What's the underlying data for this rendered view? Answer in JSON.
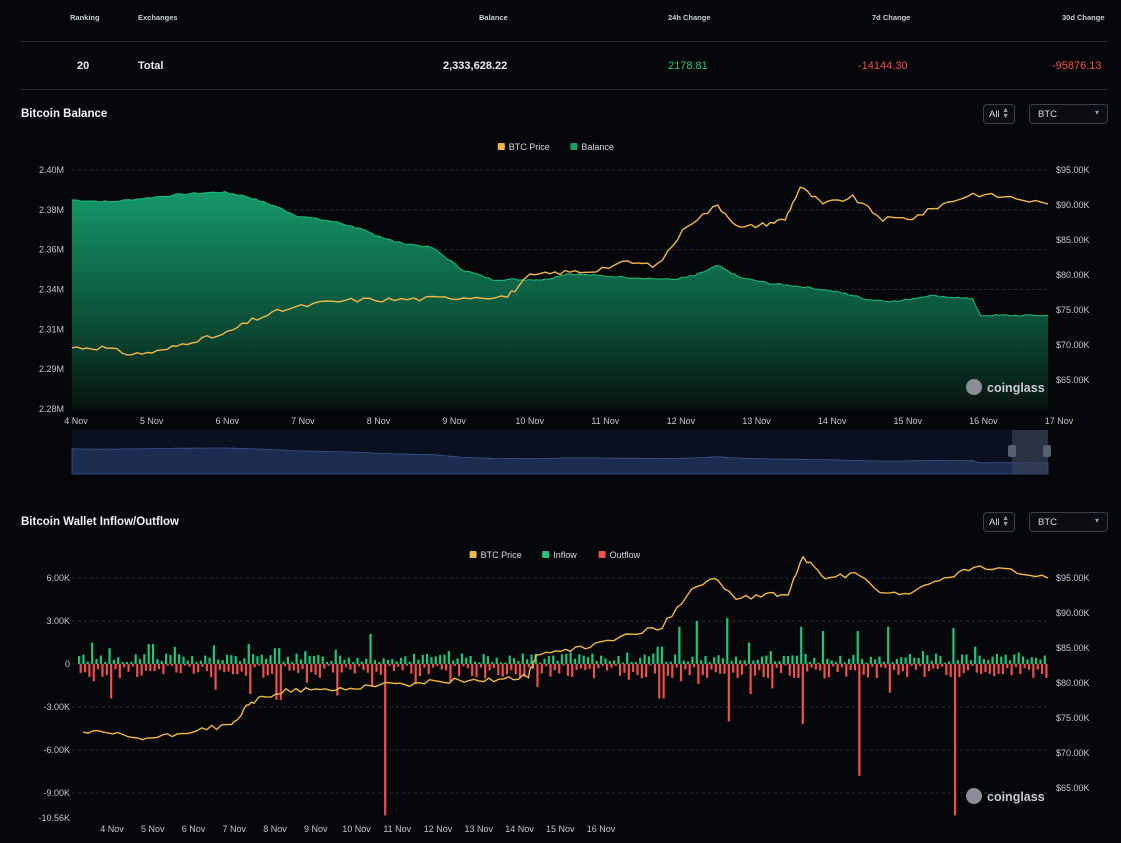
{
  "table": {
    "headers": {
      "ranking": "Ranking",
      "exchanges": "Exchanges",
      "balance": "Balance",
      "change24h": "24h Change",
      "change7d": "7d Change",
      "change30d": "30d Change"
    },
    "row": {
      "ranking": "20",
      "exchange": "Total",
      "balance": "2,333,628.22",
      "change24h": "2178.81",
      "change7d": "-14144.30",
      "change30d": "-95876.13"
    },
    "colors": {
      "positive": "#21c87a",
      "negative": "#f0504d"
    }
  },
  "balance_section": {
    "title": "Bitcoin Balance",
    "filter_value": "All",
    "coin_value": "BTC",
    "watermark": "coinglass"
  },
  "flow_section": {
    "title": "Bitcoin Wallet Inflow/Outflow",
    "filter_value": "All",
    "coin_value": "BTC",
    "watermark": "coinglass"
  },
  "chart_data": [
    {
      "type": "area",
      "legend": [
        "BTC Price",
        "Balance"
      ],
      "legend_position": "top-center",
      "colors": {
        "price": "#f0b84a",
        "balance": "#17a06a"
      },
      "x_ticks": [
        "4 Nov",
        "5 Nov",
        "6 Nov",
        "7 Nov",
        "8 Nov",
        "9 Nov",
        "10 Nov",
        "11 Nov",
        "12 Nov",
        "13 Nov",
        "14 Nov",
        "15 Nov",
        "16 Nov",
        "17 Nov"
      ],
      "y_left_ticks": [
        "2.40M",
        "2.38M",
        "2.36M",
        "2.34M",
        "2.31M",
        "2.29M",
        "2.28M"
      ],
      "y_right_ticks": [
        "$95.00K",
        "$90.00K",
        "$85.00K",
        "$80.00K",
        "$75.00K",
        "$70.00K",
        "$65.00K"
      ],
      "y_left_range": [
        2280000,
        2400000
      ],
      "y_right_range": [
        60000,
        95000
      ],
      "grid": true,
      "balance": [
        [
          4.0,
          2385000
        ],
        [
          4.5,
          2384000
        ],
        [
          5.0,
          2386000
        ],
        [
          5.5,
          2388000
        ],
        [
          6.0,
          2389000
        ],
        [
          6.3,
          2387000
        ],
        [
          6.7,
          2382000
        ],
        [
          7.0,
          2377000
        ],
        [
          7.5,
          2374000
        ],
        [
          7.8,
          2371000
        ],
        [
          8.0,
          2368000
        ],
        [
          8.3,
          2364000
        ],
        [
          8.8,
          2361000
        ],
        [
          9.2,
          2350000
        ],
        [
          9.6,
          2345000
        ],
        [
          10.0,
          2345000
        ],
        [
          10.3,
          2345000
        ],
        [
          10.6,
          2348000
        ],
        [
          11.0,
          2347000
        ],
        [
          11.5,
          2346000
        ],
        [
          12.0,
          2345000
        ],
        [
          12.3,
          2347000
        ],
        [
          12.6,
          2352000
        ],
        [
          12.9,
          2346000
        ],
        [
          13.3,
          2343000
        ],
        [
          13.6,
          2342000
        ],
        [
          14.0,
          2340000
        ],
        [
          14.3,
          2338000
        ],
        [
          14.6,
          2335000
        ],
        [
          15.0,
          2334000
        ],
        [
          15.4,
          2337000
        ],
        [
          15.8,
          2336000
        ],
        [
          16.0,
          2335000
        ],
        [
          16.1,
          2327000
        ],
        [
          16.5,
          2327000
        ],
        [
          17.0,
          2327000
        ]
      ],
      "price": [
        [
          4.0,
          69000
        ],
        [
          4.4,
          69000
        ],
        [
          4.8,
          68000
        ],
        [
          5.2,
          68500
        ],
        [
          5.6,
          70000
        ],
        [
          6.0,
          70800
        ],
        [
          6.4,
          73000
        ],
        [
          6.8,
          74500
        ],
        [
          7.3,
          75500
        ],
        [
          7.8,
          76000
        ],
        [
          8.3,
          76000
        ],
        [
          8.8,
          76200
        ],
        [
          9.3,
          76400
        ],
        [
          9.8,
          76500
        ],
        [
          10.1,
          79500
        ],
        [
          10.5,
          80000
        ],
        [
          10.9,
          80200
        ],
        [
          11.4,
          81500
        ],
        [
          11.8,
          81000
        ],
        [
          12.2,
          87000
        ],
        [
          12.6,
          89800
        ],
        [
          12.9,
          86500
        ],
        [
          13.2,
          87000
        ],
        [
          13.5,
          87800
        ],
        [
          13.7,
          92500
        ],
        [
          14.0,
          90000
        ],
        [
          14.4,
          91000
        ],
        [
          14.8,
          87800
        ],
        [
          15.2,
          88000
        ],
        [
          15.6,
          90000
        ],
        [
          16.0,
          91500
        ],
        [
          16.5,
          91000
        ],
        [
          17.0,
          90000
        ]
      ]
    },
    {
      "type": "bar",
      "legend": [
        "BTC Price",
        "Inflow",
        "Outflow"
      ],
      "legend_position": "top-center",
      "colors": {
        "price": "#f0b84a",
        "inflow": "#20c57b",
        "outflow": "#f0504d"
      },
      "x_ticks": [
        "4 Nov",
        "5 Nov",
        "6 Nov",
        "7 Nov",
        "8 Nov",
        "9 Nov",
        "10 Nov",
        "11 Nov",
        "12 Nov",
        "13 Nov",
        "14 Nov",
        "15 Nov",
        "16 Nov"
      ],
      "y_left_ticks": [
        "6.00K",
        "3.00K",
        "0",
        "-3.00K",
        "-6.00K",
        "-9.00K",
        "-10.56K"
      ],
      "y_right_ticks": [
        "$95.00K",
        "$90.00K",
        "$85.00K",
        "$80.00K",
        "$75.00K",
        "$70.00K",
        "$65.00K"
      ],
      "y_left_range": [
        -10560,
        6000
      ],
      "y_right_range": [
        60000,
        95000
      ],
      "grid": true,
      "spikes": [
        {
          "x": 4.1,
          "inflow": 1500,
          "outflow": -1200
        },
        {
          "x": 4.35,
          "inflow": 1100,
          "outflow": -2400
        },
        {
          "x": 4.9,
          "inflow": 1400,
          "outflow": -500
        },
        {
          "x": 5.2,
          "inflow": 1200,
          "outflow": -600
        },
        {
          "x": 5.75,
          "inflow": 1300,
          "outflow": -1800
        },
        {
          "x": 6.2,
          "inflow": 1400,
          "outflow": -2100
        },
        {
          "x": 6.6,
          "inflow": 1100,
          "outflow": -2500
        },
        {
          "x": 7.0,
          "inflow": 900,
          "outflow": -1300
        },
        {
          "x": 7.4,
          "inflow": 1000,
          "outflow": -2200
        },
        {
          "x": 7.85,
          "inflow": 2100,
          "outflow": -1500
        },
        {
          "x": 8.05,
          "inflow": 400,
          "outflow": -10560
        },
        {
          "x": 8.45,
          "inflow": 700,
          "outflow": -1400
        },
        {
          "x": 8.9,
          "inflow": 900,
          "outflow": -1200
        },
        {
          "x": 9.4,
          "inflow": 700,
          "outflow": -1000
        },
        {
          "x": 10.1,
          "inflow": 700,
          "outflow": -1600
        },
        {
          "x": 10.55,
          "inflow": 800,
          "outflow": -900
        },
        {
          "x": 11.3,
          "inflow": 800,
          "outflow": -1100
        },
        {
          "x": 11.75,
          "inflow": 1200,
          "outflow": -2400
        },
        {
          "x": 12.0,
          "inflow": 2600,
          "outflow": -1200
        },
        {
          "x": 12.25,
          "inflow": 3000,
          "outflow": -1400
        },
        {
          "x": 12.65,
          "inflow": 3200,
          "outflow": -4000
        },
        {
          "x": 12.95,
          "inflow": 1500,
          "outflow": -2100
        },
        {
          "x": 13.25,
          "inflow": 900,
          "outflow": -1700
        },
        {
          "x": 13.65,
          "inflow": 2600,
          "outflow": -4200
        },
        {
          "x": 13.95,
          "inflow": 2300,
          "outflow": -1000
        },
        {
          "x": 14.4,
          "inflow": 2300,
          "outflow": -7800
        },
        {
          "x": 14.85,
          "inflow": 2600,
          "outflow": -2000
        },
        {
          "x": 15.3,
          "inflow": 900,
          "outflow": -900
        },
        {
          "x": 15.7,
          "inflow": 2500,
          "outflow": -10560
        },
        {
          "x": 16.0,
          "inflow": 1200,
          "outflow": -600
        },
        {
          "x": 16.6,
          "inflow": 800,
          "outflow": -700
        }
      ],
      "price": [
        [
          4.0,
          68000
        ],
        [
          4.4,
          67700
        ],
        [
          4.8,
          67000
        ],
        [
          5.2,
          67500
        ],
        [
          5.6,
          68500
        ],
        [
          6.0,
          68900
        ],
        [
          6.2,
          71500
        ],
        [
          6.4,
          73000
        ],
        [
          6.8,
          74000
        ],
        [
          7.2,
          74000
        ],
        [
          7.6,
          74200
        ],
        [
          8.0,
          74900
        ],
        [
          8.4,
          74800
        ],
        [
          8.8,
          75300
        ],
        [
          9.2,
          75400
        ],
        [
          9.6,
          75500
        ],
        [
          10.0,
          76000
        ],
        [
          10.1,
          79000
        ],
        [
          10.5,
          79500
        ],
        [
          10.9,
          80500
        ],
        [
          11.4,
          82000
        ],
        [
          11.8,
          83000
        ],
        [
          12.2,
          88500
        ],
        [
          12.5,
          90000
        ],
        [
          12.8,
          87000
        ],
        [
          13.2,
          87500
        ],
        [
          13.5,
          87800
        ],
        [
          13.7,
          93000
        ],
        [
          14.0,
          90000
        ],
        [
          14.4,
          90500
        ],
        [
          14.8,
          87800
        ],
        [
          15.2,
          88000
        ],
        [
          15.6,
          90000
        ],
        [
          16.0,
          91500
        ],
        [
          16.5,
          91000
        ],
        [
          17.0,
          90000
        ]
      ]
    }
  ]
}
